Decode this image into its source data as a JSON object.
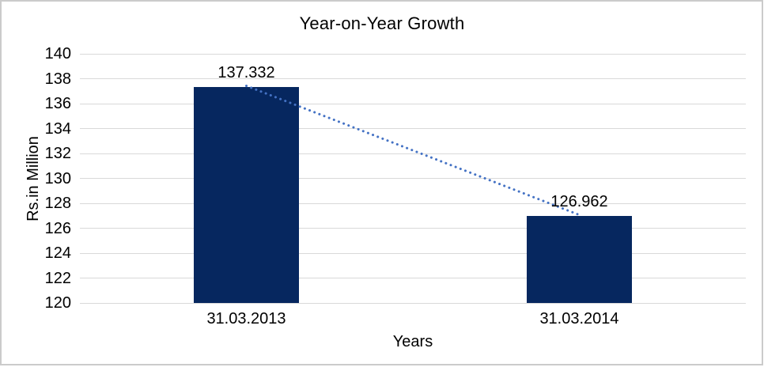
{
  "chart_data": {
    "type": "bar",
    "title": "Year-on-Year Growth",
    "xlabel": "Years",
    "ylabel": "Rs.in Million",
    "categories": [
      "31.03.2013",
      "31.03.2014"
    ],
    "values": [
      137.332,
      126.962
    ],
    "data_labels": [
      "137.332",
      "126.962"
    ],
    "ylim": [
      120,
      140
    ],
    "ytick_step": 2,
    "yticks": [
      140,
      138,
      136,
      134,
      132,
      130,
      128,
      126,
      124,
      122,
      120
    ],
    "grid": true,
    "legend": "none",
    "trendline": {
      "style": "dotted",
      "connects": "bar tops"
    },
    "colors": {
      "bar": "#06275f",
      "trendline": "#4472c4",
      "gridline": "#d9d9d9",
      "frame_border": "#cbcbcb",
      "text": "#000000"
    }
  }
}
